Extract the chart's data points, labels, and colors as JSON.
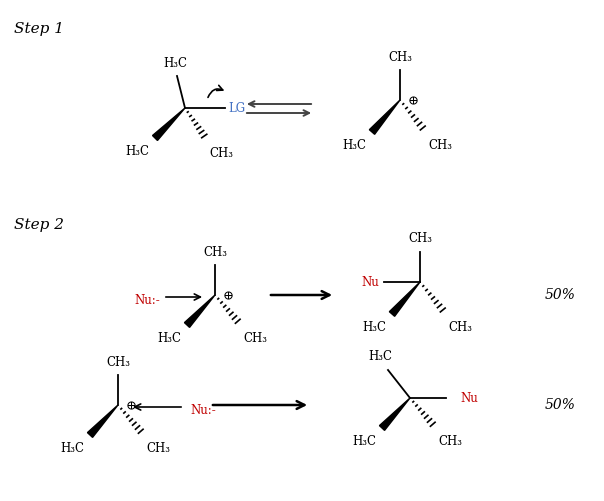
{
  "bg_color": "#ffffff",
  "lg_color": "#4472c4",
  "nu_color": "#c00000",
  "step1_label": "Step 1",
  "step2_label": "Step 2",
  "pct_label": "50%",
  "figsize": [
    6.04,
    5.01
  ],
  "dpi": 100,
  "font_size": 8.5
}
